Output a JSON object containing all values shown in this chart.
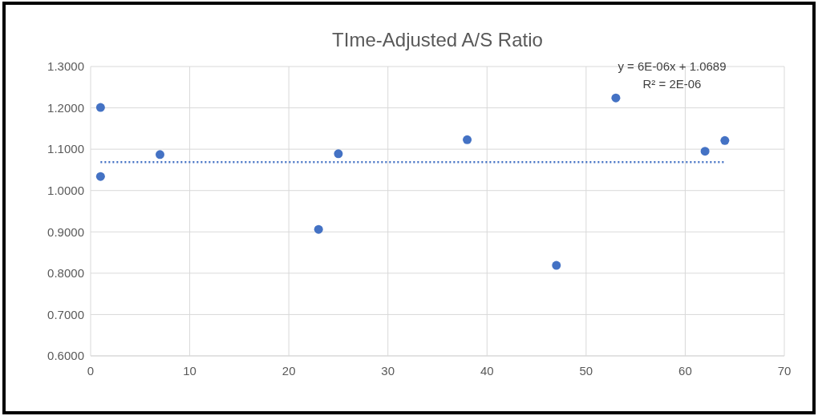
{
  "chart_data": {
    "type": "scatter",
    "title": "TIme-Adjusted A/S Ratio",
    "xlim": [
      0,
      70
    ],
    "xticks": [
      0,
      10,
      20,
      30,
      40,
      50,
      60,
      70
    ],
    "ylim": [
      0.6,
      1.3
    ],
    "yticks": [
      {
        "value": 0.6,
        "label": "0.6000"
      },
      {
        "value": 0.7,
        "label": "0.7000"
      },
      {
        "value": 0.8,
        "label": "0.8000"
      },
      {
        "value": 0.9,
        "label": "0.9000"
      },
      {
        "value": 1.0,
        "label": "1.0000"
      },
      {
        "value": 1.1,
        "label": "1.1000"
      },
      {
        "value": 1.2,
        "label": "1.2000"
      },
      {
        "value": 1.3,
        "label": "1.3000"
      }
    ],
    "grid": true,
    "marker": "circle",
    "series": [
      {
        "type": "scatter",
        "color": "#4472c4",
        "x": [
          1,
          1,
          7,
          23,
          25,
          38,
          47,
          53,
          62,
          64
        ],
        "values": [
          1.201,
          1.034,
          1.087,
          0.906,
          1.089,
          1.123,
          0.819,
          1.224,
          1.095,
          1.121
        ]
      },
      {
        "type": "line",
        "color": "#4472c4",
        "line_style": "dotted",
        "marker": "none",
        "x": [
          1,
          64
        ],
        "values": [
          1.069,
          1.069
        ]
      }
    ],
    "annotations": [
      "y = 6E-06x + 1.0689",
      "R² = 2E-06"
    ]
  }
}
